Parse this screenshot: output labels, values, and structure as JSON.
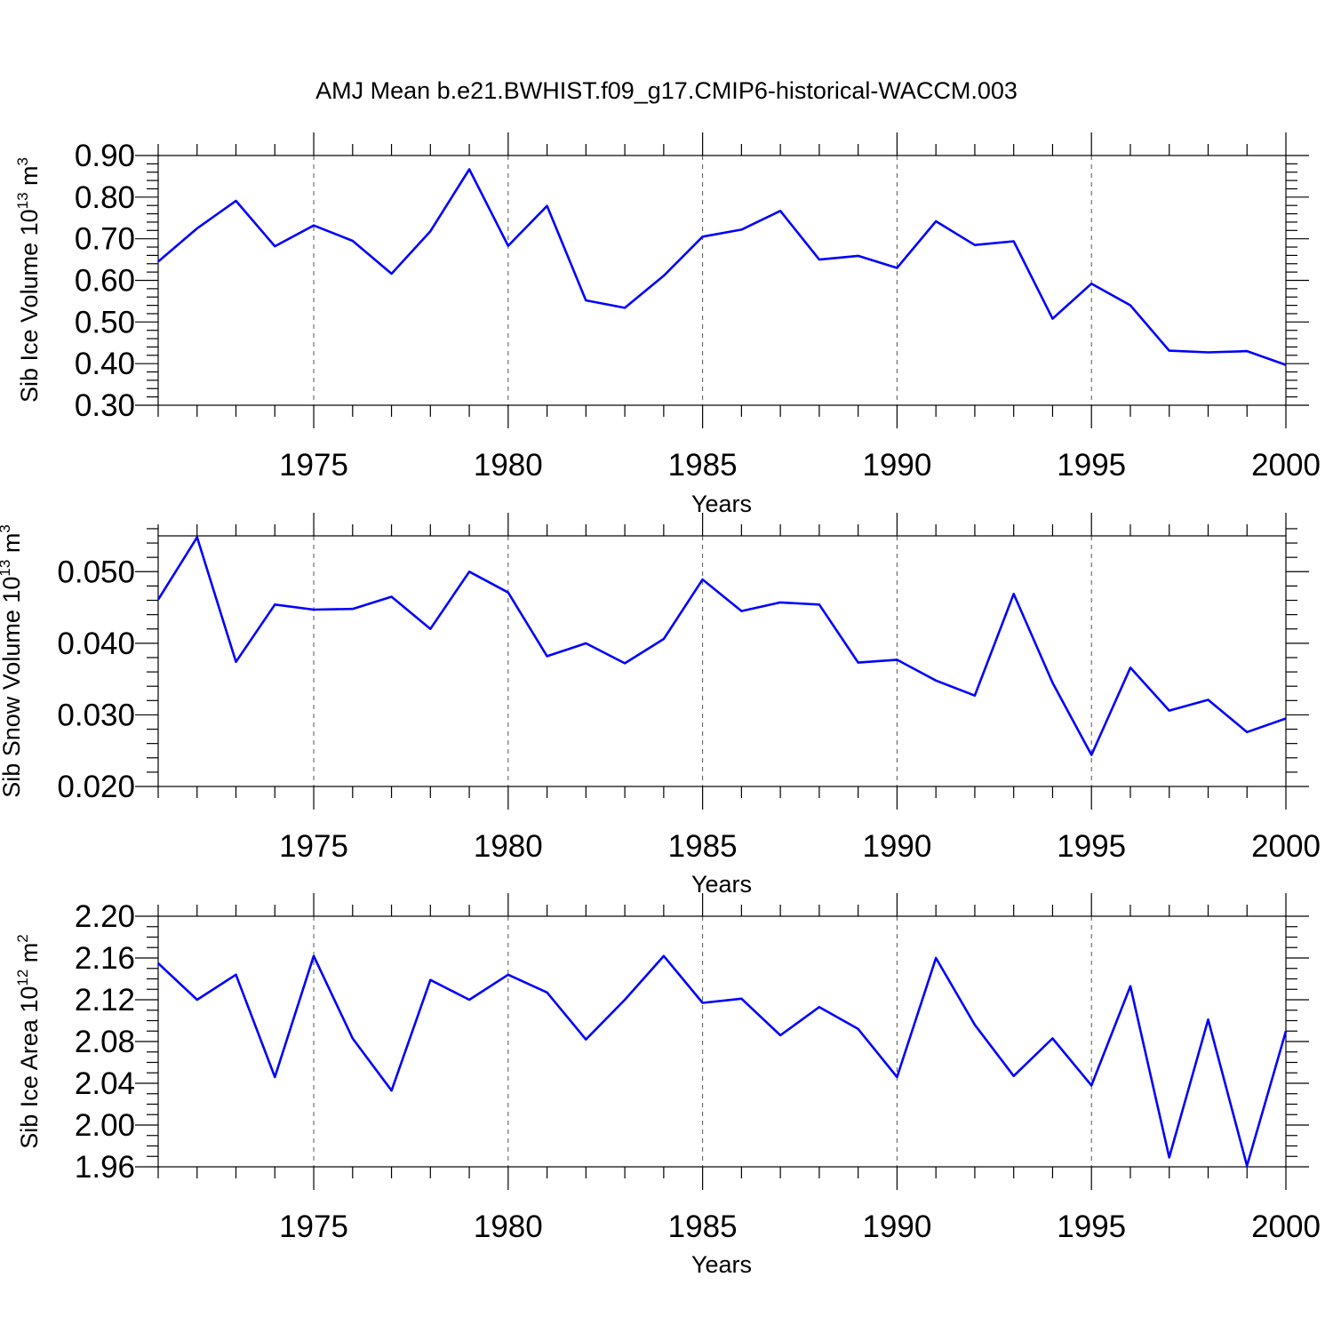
{
  "title": "AMJ Mean b.e21.BWHIST.f09_g17.CMIP6-historical-WACCM.003",
  "chart_data": [
    {
      "type": "line",
      "title": "",
      "xlabel": "Years",
      "ylabel": "Sib Ice Volume 10",
      "ylabel_sup1": "13",
      "ylabel_unit": " m",
      "ylabel_sup2": "3",
      "xlim": [
        1971,
        2000
      ],
      "ylim": [
        0.3,
        0.9
      ],
      "xticks": [
        1975,
        1980,
        1985,
        1990,
        1995,
        2000
      ],
      "yticks": [
        "0.30",
        "0.40",
        "0.50",
        "0.60",
        "0.70",
        "0.80",
        "0.90"
      ],
      "grid": "vertical dashed at major year ticks",
      "line_color": "#0000ff",
      "x": [
        1971,
        1972,
        1973,
        1974,
        1975,
        1976,
        1977,
        1978,
        1979,
        1980,
        1981,
        1982,
        1983,
        1984,
        1985,
        1986,
        1987,
        1988,
        1989,
        1990,
        1991,
        1992,
        1993,
        1994,
        1995,
        1996,
        1997,
        1998,
        1999,
        2000
      ],
      "values": [
        0.645,
        0.725,
        0.791,
        0.682,
        0.732,
        0.695,
        0.616,
        0.718,
        0.867,
        0.683,
        0.779,
        0.552,
        0.534,
        0.611,
        0.705,
        0.722,
        0.767,
        0.65,
        0.659,
        0.63,
        0.742,
        0.685,
        0.694,
        0.508,
        0.592,
        0.54,
        0.431,
        0.427,
        0.43,
        0.397
      ]
    },
    {
      "type": "line",
      "title": "",
      "xlabel": "Years",
      "ylabel": "Sib Snow Volume 10",
      "ylabel_sup1": "13",
      "ylabel_unit": " m",
      "ylabel_sup2": "3",
      "xlim": [
        1971,
        2000
      ],
      "ylim": [
        0.02,
        0.055
      ],
      "xticks": [
        1975,
        1980,
        1985,
        1990,
        1995,
        2000
      ],
      "yticks": [
        "0.020",
        "0.030",
        "0.040",
        "0.050"
      ],
      "grid": "vertical dashed at major year ticks",
      "line_color": "#0000ff",
      "x": [
        1971,
        1972,
        1973,
        1974,
        1975,
        1976,
        1977,
        1978,
        1979,
        1980,
        1981,
        1982,
        1983,
        1984,
        1985,
        1986,
        1987,
        1988,
        1989,
        1990,
        1991,
        1992,
        1993,
        1994,
        1995,
        1996,
        1997,
        1998,
        1999,
        2000
      ],
      "values": [
        0.0461,
        0.0548,
        0.0374,
        0.0454,
        0.0447,
        0.0448,
        0.0465,
        0.042,
        0.05,
        0.0471,
        0.0382,
        0.04,
        0.0372,
        0.0406,
        0.0489,
        0.0445,
        0.0457,
        0.0454,
        0.0373,
        0.0377,
        0.0348,
        0.0327,
        0.0469,
        0.0345,
        0.0244,
        0.0366,
        0.0306,
        0.0321,
        0.0276,
        0.0295
      ]
    },
    {
      "type": "line",
      "title": "",
      "xlabel": "Years",
      "ylabel": "Sib Ice Area 10",
      "ylabel_sup1": "12",
      "ylabel_unit": " m",
      "ylabel_sup2": "2",
      "xlim": [
        1971,
        2000
      ],
      "ylim": [
        1.96,
        2.2
      ],
      "xticks": [
        1975,
        1980,
        1985,
        1990,
        1995,
        2000
      ],
      "yticks": [
        "1.96",
        "2.00",
        "2.04",
        "2.08",
        "2.12",
        "2.16",
        "2.20"
      ],
      "grid": "vertical dashed at major year ticks",
      "line_color": "#0000ff",
      "x": [
        1971,
        1972,
        1973,
        1974,
        1975,
        1976,
        1977,
        1978,
        1979,
        1980,
        1981,
        1982,
        1983,
        1984,
        1985,
        1986,
        1987,
        1988,
        1989,
        1990,
        1991,
        1992,
        1993,
        1994,
        1995,
        1996,
        1997,
        1998,
        1999,
        2000
      ],
      "values": [
        2.155,
        2.12,
        2.144,
        2.046,
        2.162,
        2.083,
        2.033,
        2.139,
        2.12,
        2.144,
        2.127,
        2.082,
        2.12,
        2.162,
        2.117,
        2.121,
        2.086,
        2.113,
        2.092,
        2.046,
        2.16,
        2.096,
        2.047,
        2.083,
        2.038,
        2.133,
        1.969,
        2.101,
        1.961,
        2.09
      ]
    }
  ]
}
